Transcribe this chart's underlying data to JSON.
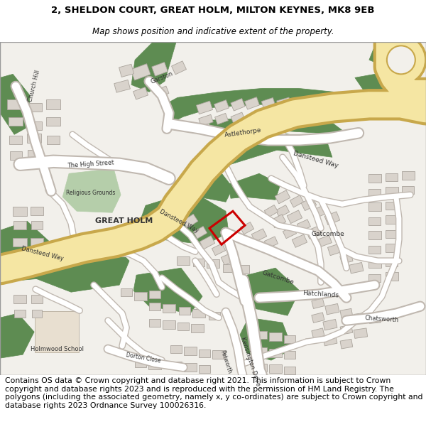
{
  "title_line1": "2, SHELDON COURT, GREAT HOLM, MILTON KEYNES, MK8 9EB",
  "title_line2": "Map shows position and indicative extent of the property.",
  "title_fontsize": 9.5,
  "subtitle_fontsize": 8.5,
  "footer_text": "Contains OS data © Crown copyright and database right 2021. This information is subject to Crown copyright and database rights 2023 and is reproduced with the permission of HM Land Registry. The polygons (including the associated geometry, namely x, y co-ordinates) are subject to Crown copyright and database rights 2023 Ordnance Survey 100026316.",
  "footer_fontsize": 7.8,
  "bg_color": "#ffffff",
  "map_bg": "#f2f0eb",
  "road_yellow": "#f5e6a3",
  "road_yellow_border": "#c8a84b",
  "green_color": "#5e8c52",
  "light_green": "#b5ceaa",
  "building_color": "#d9d3cc",
  "building_outline": "#aaa49c",
  "red_polygon": "#cc0000",
  "school_color": "#e8dfd0"
}
